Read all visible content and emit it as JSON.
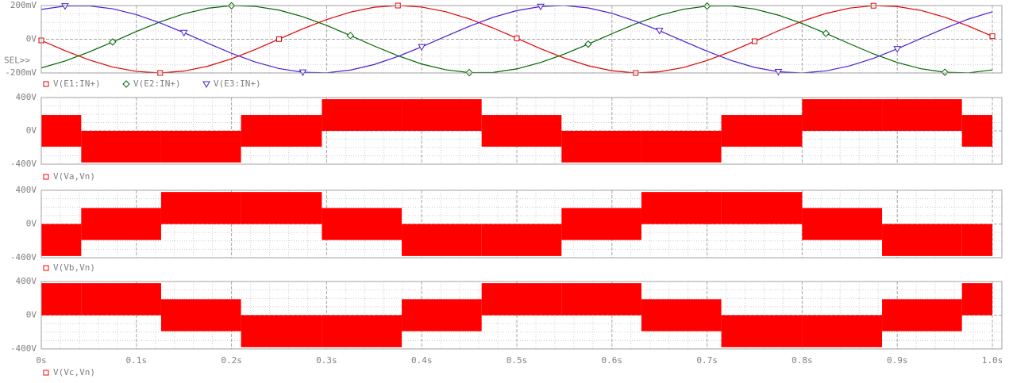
{
  "x_axis": {
    "xlim": [
      0,
      1.01
    ],
    "xticks": [
      {
        "value": 0,
        "label": "0s"
      },
      {
        "value": 0.1,
        "label": "0.1s"
      },
      {
        "value": 0.2,
        "label": "0.2s"
      },
      {
        "value": 0.3,
        "label": "0.3s"
      },
      {
        "value": 0.4,
        "label": "0.4s"
      },
      {
        "value": 0.5,
        "label": "0.5s"
      },
      {
        "value": 0.6,
        "label": "0.6s"
      },
      {
        "value": 0.7,
        "label": "0.7s"
      },
      {
        "value": 0.8,
        "label": "0.8s"
      },
      {
        "value": 0.9,
        "label": "0.9s"
      },
      {
        "value": 1.0,
        "label": "1.0s"
      }
    ],
    "minor_step": 0.02
  },
  "chart_data": [
    {
      "type": "line",
      "selector": "SEL>>",
      "ylim": [
        -200,
        200
      ],
      "yticks": [
        {
          "value": 200,
          "label": "200mV"
        },
        {
          "value": 0,
          "label": "0V"
        },
        {
          "value": -200,
          "label": "-200mV"
        }
      ],
      "yminor_step": 50,
      "x": [
        0,
        0.025,
        0.05,
        0.075,
        0.1,
        0.125,
        0.15,
        0.175,
        0.2,
        0.225,
        0.25,
        0.275,
        0.3,
        0.325,
        0.35,
        0.375,
        0.4,
        0.425,
        0.45,
        0.475,
        0.5,
        0.525,
        0.55,
        0.575,
        0.6,
        0.625,
        0.65,
        0.675,
        0.7,
        0.725,
        0.75,
        0.775,
        0.8,
        0.825,
        0.85,
        0.875,
        0.9,
        0.925,
        0.95,
        0.975,
        1.0
      ],
      "series": [
        {
          "name": "V(E1:IN+)",
          "color": "#e00000",
          "marker": "square",
          "values": [
            -7,
            -68,
            -122,
            -165,
            -191,
            -200,
            -189,
            -160,
            -116,
            -61,
            1,
            62,
            117,
            161,
            190,
            200,
            191,
            164,
            121,
            67,
            6,
            -56,
            -112,
            -157,
            -187,
            -200,
            -193,
            -168,
            -126,
            -73,
            -12,
            50,
            107,
            153,
            185,
            199,
            194,
            171,
            131,
            78,
            18
          ]
        },
        {
          "name": "V(E2:IN+)",
          "color": "#006400",
          "marker": "diamond",
          "values": [
            -170,
            -129,
            -76,
            -16,
            46,
            103,
            151,
            184,
            199,
            195,
            173,
            134,
            82,
            22,
            -40,
            -98,
            -147,
            -181,
            -198,
            -197,
            -176,
            -138,
            -88,
            -29,
            33,
            92,
            142,
            178,
            197,
            198,
            179,
            143,
            93,
            35,
            -27,
            -87,
            -138,
            -175,
            -196,
            -199,
            -182
          ]
        },
        {
          "name": "V(E3:IN+)",
          "color": "#4b1ed2",
          "marker": "triangle",
          "values": [
            177,
            197,
            198,
            181,
            146,
            97,
            39,
            -23,
            -83,
            -135,
            -174,
            -196,
            -199,
            -183,
            -150,
            -102,
            -45,
            17,
            77,
            130,
            170,
            194,
            200,
            186,
            154,
            107,
            51,
            -11,
            -71,
            -125,
            -167,
            -193,
            -200,
            -188,
            -158,
            -113,
            -57,
            5,
            65,
            120,
            163
          ]
        }
      ]
    },
    {
      "type": "band",
      "ylim": [
        -400,
        400
      ],
      "yticks": [
        {
          "value": 400,
          "label": "400V"
        },
        {
          "value": 0,
          "label": "0V"
        },
        {
          "value": -400,
          "label": "-400V"
        }
      ],
      "yminor_step": 100,
      "series": [
        {
          "name": "V(Va,Vn)",
          "color": "#ff0000",
          "marker": "square",
          "edges": [
            0,
            0.042,
            0.126,
            0.21,
            0.295,
            0.379,
            0.463,
            0.547,
            0.631,
            0.715,
            0.8,
            0.884,
            0.968,
            1.0
          ],
          "upper": [
            190,
            0,
            0,
            190,
            380,
            380,
            190,
            0,
            0,
            190,
            380,
            380,
            190
          ],
          "lower": [
            -190,
            -380,
            -380,
            -190,
            0,
            0,
            -190,
            -380,
            -380,
            -190,
            0,
            0,
            -190
          ]
        }
      ]
    },
    {
      "type": "band",
      "ylim": [
        -400,
        400
      ],
      "yticks": [
        {
          "value": 400,
          "label": "400V"
        },
        {
          "value": 0,
          "label": "0V"
        },
        {
          "value": -400,
          "label": "-400V"
        }
      ],
      "yminor_step": 100,
      "series": [
        {
          "name": "V(Vb,Vn)",
          "color": "#ff0000",
          "marker": "square",
          "edges": [
            0,
            0.042,
            0.126,
            0.21,
            0.295,
            0.379,
            0.463,
            0.547,
            0.631,
            0.715,
            0.8,
            0.884,
            0.968,
            1.0
          ],
          "upper": [
            0,
            190,
            380,
            380,
            190,
            0,
            0,
            190,
            380,
            380,
            190,
            0,
            0
          ],
          "lower": [
            -380,
            -190,
            0,
            0,
            -190,
            -380,
            -380,
            -190,
            0,
            0,
            -190,
            -380,
            -380
          ]
        }
      ]
    },
    {
      "type": "band",
      "ylim": [
        -400,
        400
      ],
      "yticks": [
        {
          "value": 400,
          "label": "400V"
        },
        {
          "value": 0,
          "label": "0V"
        },
        {
          "value": -400,
          "label": "-400V"
        }
      ],
      "yminor_step": 100,
      "series": [
        {
          "name": "V(Vc,Vn)",
          "color": "#ff0000",
          "marker": "square",
          "edges": [
            0,
            0.042,
            0.126,
            0.21,
            0.295,
            0.379,
            0.463,
            0.547,
            0.631,
            0.715,
            0.8,
            0.884,
            0.968,
            1.0
          ],
          "upper": [
            380,
            380,
            190,
            0,
            0,
            190,
            380,
            380,
            190,
            0,
            0,
            190,
            380
          ],
          "lower": [
            0,
            0,
            -190,
            -380,
            -380,
            -190,
            0,
            0,
            -190,
            -380,
            -380,
            -190,
            0
          ]
        }
      ]
    }
  ]
}
